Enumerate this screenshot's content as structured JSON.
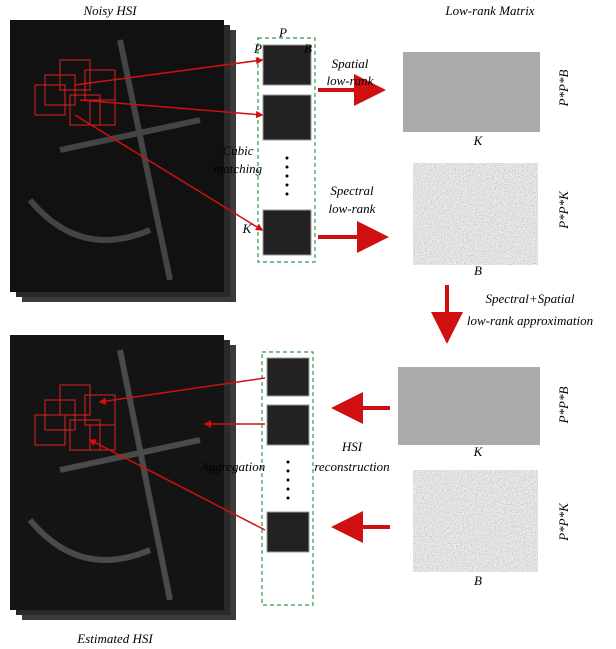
{
  "titles": {
    "noisy": "Noisy HSI",
    "lowrank": "Low-rank Matrix",
    "estimated": "Estimated HSI"
  },
  "patch_labels": {
    "p_top": "P",
    "p_left": "P",
    "b": "B",
    "k": "K"
  },
  "steps": {
    "cubic": [
      "Cubic",
      "matching"
    ],
    "spatial": [
      "Spatial",
      "low-rank"
    ],
    "spectral": [
      "Spectral",
      "low-rank"
    ],
    "approx": [
      "Spectral+Spatial",
      "low-rank approximation"
    ],
    "aggregation": "Aggregation",
    "reconstruction": [
      "HSI",
      "reconstruction"
    ]
  },
  "matrices": [
    {
      "side": "P*P*B",
      "bottom": "K"
    },
    {
      "side": "P*P*K",
      "bottom": "B"
    },
    {
      "side": "P*P*B",
      "bottom": "K"
    },
    {
      "side": "P*P*K",
      "bottom": "B"
    }
  ]
}
